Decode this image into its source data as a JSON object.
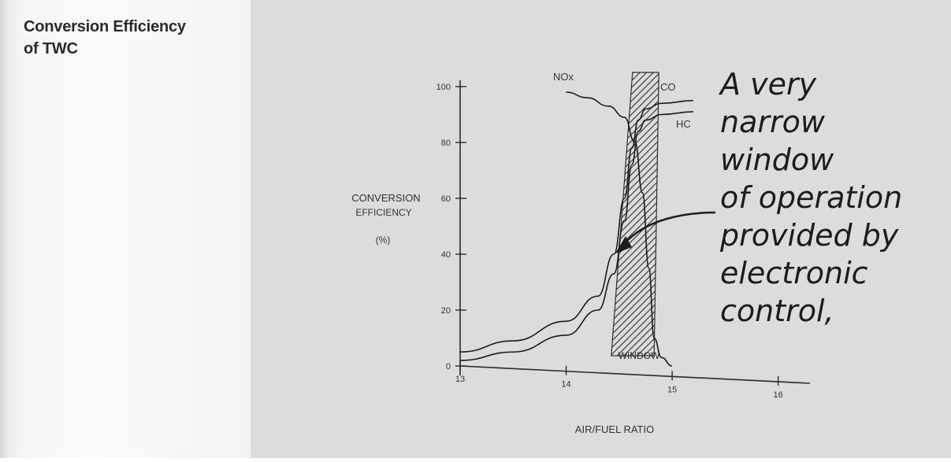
{
  "caption": {
    "line1": "Conversion Efficiency",
    "line2": "of TWC"
  },
  "chart_data": {
    "type": "line",
    "ylabel_lines": [
      "CONVERSION",
      "EFFICIENCY",
      "(%)"
    ],
    "xlabel": "AIR/FUEL RATIO",
    "x_ticks": [
      13,
      14,
      15,
      16
    ],
    "y_ticks": [
      0,
      20,
      40,
      60,
      80,
      100
    ],
    "xlim": [
      13,
      16.3
    ],
    "ylim": [
      0,
      100
    ],
    "grid": false,
    "window": {
      "label": "WINDOW",
      "x_range": [
        14.5,
        14.8
      ]
    },
    "series": [
      {
        "name": "NOx",
        "x": [
          14.0,
          14.2,
          14.4,
          14.55,
          14.65,
          14.72,
          14.78,
          14.83,
          14.9,
          15.0
        ],
        "y": [
          98,
          96,
          93,
          89,
          80,
          62,
          35,
          10,
          3,
          0
        ]
      },
      {
        "name": "CO",
        "x": [
          13.0,
          13.5,
          14.0,
          14.3,
          14.45,
          14.55,
          14.62,
          14.68,
          14.75,
          14.9,
          15.2
        ],
        "y": [
          5,
          9,
          16,
          25,
          40,
          60,
          78,
          88,
          92,
          94,
          95
        ]
      },
      {
        "name": "HC",
        "x": [
          13.0,
          13.5,
          14.0,
          14.3,
          14.45,
          14.55,
          14.62,
          14.68,
          14.75,
          14.9,
          15.2
        ],
        "y": [
          2,
          5,
          11,
          20,
          33,
          52,
          72,
          84,
          88,
          90,
          91
        ]
      }
    ],
    "series_labels": {
      "NOx": "NOx",
      "CO": "CO",
      "HC": "HC"
    },
    "annotation_lines": [
      "A very",
      "narrow",
      "window",
      "of operation",
      "provided by",
      "electronic",
      "control,"
    ],
    "colors": {
      "curve": "#1c1c1c",
      "background": "#dcdcdc",
      "hatch": "#2e2e2e"
    }
  }
}
